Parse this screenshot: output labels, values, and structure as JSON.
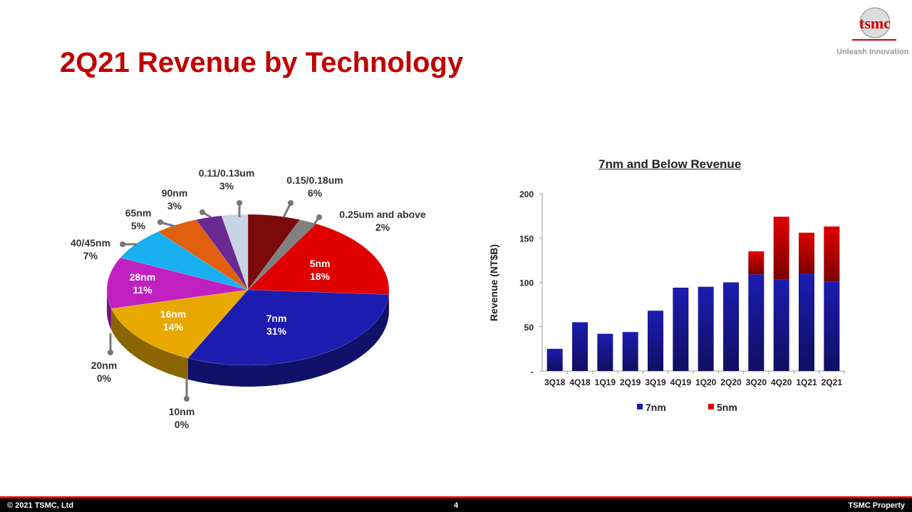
{
  "title": "2Q21 Revenue by Technology",
  "logo": {
    "text": "tsmc",
    "tagline": "Unleash Innovation"
  },
  "footer": {
    "copyright": "© 2021 TSMC, Ltd",
    "page": "4",
    "property": "TSMC Property"
  },
  "colors": {
    "accent": "#c00000",
    "7nm": "#1c1cb0",
    "5nm": "#e00000"
  },
  "chart_data": [
    {
      "type": "pie",
      "title": "2Q21 Revenue by Technology",
      "slices": [
        {
          "label": "0.15/0.18um",
          "value": 6,
          "display": "6%",
          "color": "#7a0a0a"
        },
        {
          "label": "0.25um and above",
          "value": 2,
          "display": "2%",
          "color": "#808080"
        },
        {
          "label": "5nm",
          "value": 18,
          "display": "18%",
          "color": "#e00000"
        },
        {
          "label": "7nm",
          "value": 31,
          "display": "31%",
          "color": "#1c1cb0"
        },
        {
          "label": "10nm",
          "value": 0,
          "display": "0%",
          "color": "#444"
        },
        {
          "label": "16nm",
          "value": 14,
          "display": "14%",
          "color": "#e8a800"
        },
        {
          "label": "20nm",
          "value": 0,
          "display": "0%",
          "color": "#444"
        },
        {
          "label": "28nm",
          "value": 11,
          "display": "11%",
          "color": "#c020c0"
        },
        {
          "label": "40/45nm",
          "value": 7,
          "display": "7%",
          "color": "#18b0f0"
        },
        {
          "label": "65nm",
          "value": 5,
          "display": "5%",
          "color": "#e06010"
        },
        {
          "label": "90nm",
          "value": 3,
          "display": "3%",
          "color": "#6a2a90"
        },
        {
          "label": "0.11/0.13um",
          "value": 3,
          "display": "3%",
          "color": "#c8d4e4"
        }
      ]
    },
    {
      "type": "bar",
      "stacked": true,
      "title": "7nm and Below Revenue",
      "ylabel": "Revenue (NT$B)",
      "xlabel": "",
      "ylim": [
        0,
        200
      ],
      "yticks": [
        "-",
        "50",
        "100",
        "150",
        "200"
      ],
      "categories": [
        "3Q18",
        "4Q18",
        "1Q19",
        "2Q19",
        "3Q19",
        "4Q19",
        "1Q20",
        "2Q20",
        "3Q20",
        "4Q20",
        "1Q21",
        "2Q21"
      ],
      "series": [
        {
          "name": "7nm",
          "color": "#1c1cb0",
          "values": [
            25,
            55,
            42,
            44,
            68,
            94,
            95,
            100,
            109,
            103,
            110,
            101
          ]
        },
        {
          "name": "5nm",
          "color": "#e00000",
          "values": [
            0,
            0,
            0,
            0,
            0,
            0,
            0,
            0,
            26,
            71,
            46,
            62
          ]
        }
      ],
      "legend": "bottom"
    }
  ]
}
